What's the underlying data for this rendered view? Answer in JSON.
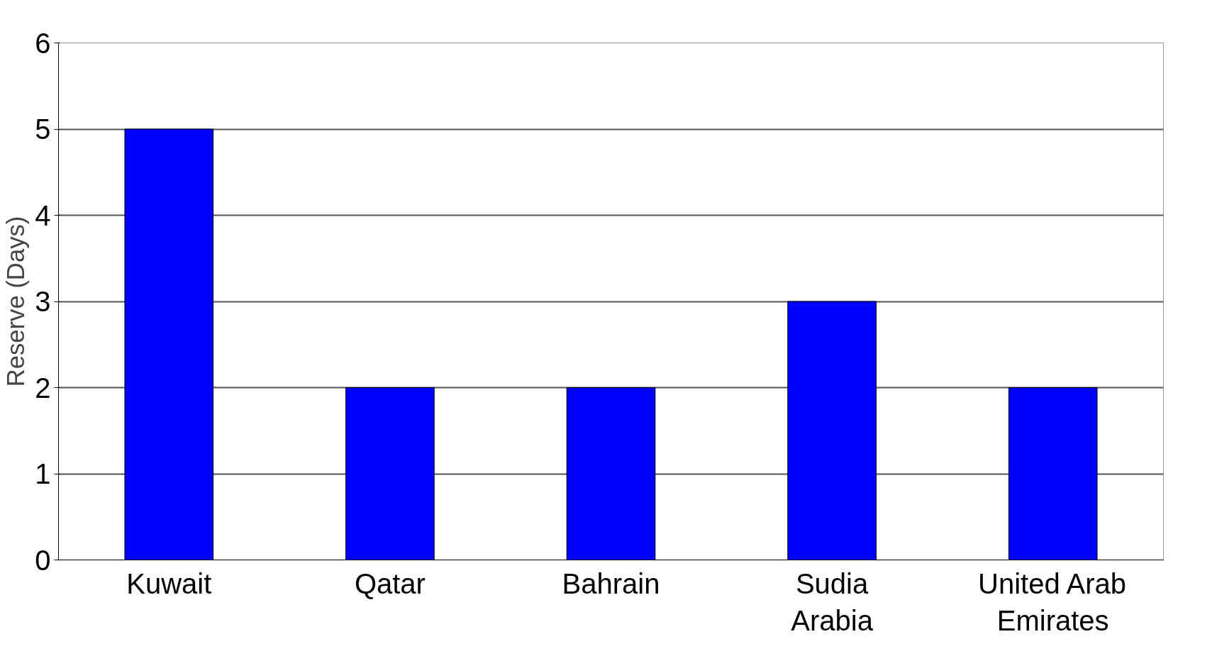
{
  "chart_data": {
    "type": "bar",
    "ylabel": "Reserve (Days)",
    "categories": [
      "Kuwait",
      "Qatar",
      "Bahrain",
      "Sudia Arabia",
      "United Arab Emirates"
    ],
    "values": [
      5,
      2,
      2,
      3,
      2
    ],
    "color": "#0000ff",
    "ylim": [
      0,
      6
    ],
    "yticks": [
      0,
      1,
      2,
      3,
      4,
      5,
      6
    ],
    "grid": "y"
  }
}
